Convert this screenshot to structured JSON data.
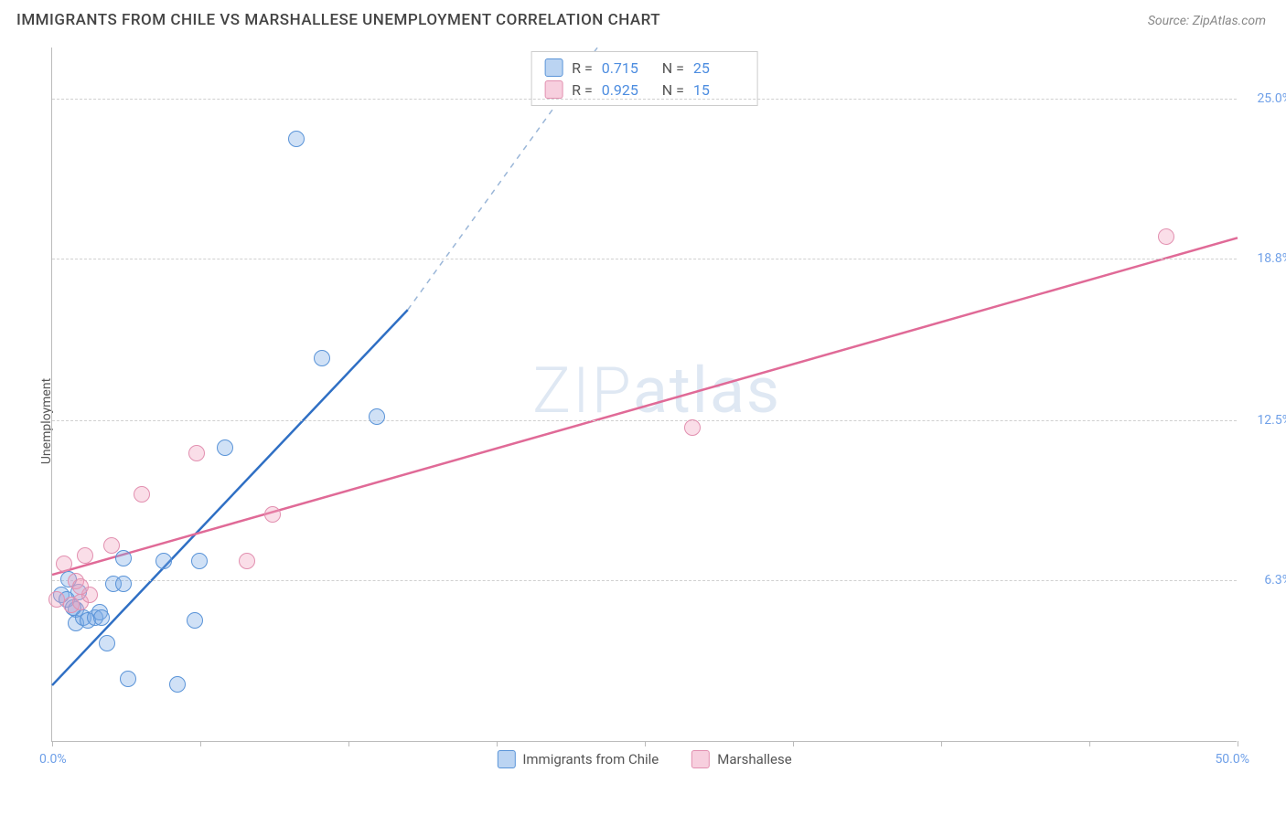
{
  "header": {
    "title": "IMMIGRANTS FROM CHILE VS MARSHALLESE UNEMPLOYMENT CORRELATION CHART",
    "source": "Source: ZipAtlas.com"
  },
  "chart": {
    "type": "scatter",
    "ylabel": "Unemployment",
    "xlim": [
      0,
      50
    ],
    "ylim": [
      0,
      27
    ],
    "x_ticks_percent": [
      0,
      6.25,
      12.5,
      18.75,
      25,
      31.25,
      37.5,
      43.75,
      50
    ],
    "x_tick_labels": {
      "left": "0.0%",
      "right": "50.0%"
    },
    "y_gridlines": [
      6.3,
      12.5,
      18.8,
      25.0
    ],
    "y_tick_labels": [
      "6.3%",
      "12.5%",
      "18.8%",
      "25.0%"
    ],
    "watermark": "ZIPatlas",
    "colors": {
      "series_blue_fill": "rgba(120,170,230,0.35)",
      "series_blue_stroke": "#5a94d8",
      "series_blue_line": "#2f6fc4",
      "series_pink_fill": "rgba(240,160,190,0.35)",
      "series_pink_stroke": "#e290b0",
      "series_pink_line": "#e06a97",
      "grid": "#d0d0d0",
      "axis": "#bbbbbb",
      "tick_text": "#6fa0e8"
    },
    "series": [
      {
        "name": "Immigrants from Chile",
        "color_key": "blue",
        "R": "0.715",
        "N": "25",
        "trend": {
          "x1": 0,
          "y1": 2.2,
          "x2": 15,
          "y2": 16.8,
          "dash_to_x": 23,
          "dash_to_y": 27
        },
        "points": [
          {
            "x": 0.4,
            "y": 5.7
          },
          {
            "x": 0.6,
            "y": 5.5
          },
          {
            "x": 0.7,
            "y": 6.3
          },
          {
            "x": 1.0,
            "y": 5.1
          },
          {
            "x": 1.0,
            "y": 4.6
          },
          {
            "x": 1.3,
            "y": 4.8
          },
          {
            "x": 1.5,
            "y": 4.7
          },
          {
            "x": 1.8,
            "y": 4.8
          },
          {
            "x": 2.0,
            "y": 5.0
          },
          {
            "x": 2.1,
            "y": 4.8
          },
          {
            "x": 2.6,
            "y": 6.1
          },
          {
            "x": 2.3,
            "y": 3.8
          },
          {
            "x": 3.0,
            "y": 7.1
          },
          {
            "x": 3.0,
            "y": 6.1
          },
          {
            "x": 3.2,
            "y": 2.4
          },
          {
            "x": 4.7,
            "y": 7.0
          },
          {
            "x": 5.3,
            "y": 2.2
          },
          {
            "x": 6.2,
            "y": 7.0
          },
          {
            "x": 6.0,
            "y": 4.7
          },
          {
            "x": 7.3,
            "y": 11.4
          },
          {
            "x": 10.3,
            "y": 23.4
          },
          {
            "x": 11.4,
            "y": 14.9
          },
          {
            "x": 13.7,
            "y": 12.6
          },
          {
            "x": 1.1,
            "y": 5.8
          },
          {
            "x": 0.9,
            "y": 5.2
          }
        ]
      },
      {
        "name": "Marshallese",
        "color_key": "pink",
        "R": "0.925",
        "N": "15",
        "trend": {
          "x1": 0,
          "y1": 6.5,
          "x2": 50,
          "y2": 19.6
        },
        "points": [
          {
            "x": 0.2,
            "y": 5.5
          },
          {
            "x": 0.5,
            "y": 6.9
          },
          {
            "x": 0.8,
            "y": 5.3
          },
          {
            "x": 1.0,
            "y": 6.2
          },
          {
            "x": 1.2,
            "y": 5.4
          },
          {
            "x": 1.4,
            "y": 7.2
          },
          {
            "x": 1.6,
            "y": 5.7
          },
          {
            "x": 1.2,
            "y": 6.0
          },
          {
            "x": 2.5,
            "y": 7.6
          },
          {
            "x": 3.8,
            "y": 9.6
          },
          {
            "x": 6.1,
            "y": 11.2
          },
          {
            "x": 8.2,
            "y": 7.0
          },
          {
            "x": 9.3,
            "y": 8.8
          },
          {
            "x": 27.0,
            "y": 12.2
          },
          {
            "x": 47.0,
            "y": 19.6
          }
        ]
      }
    ],
    "legend_bottom": [
      {
        "swatch": "blue",
        "label": "Immigrants from Chile"
      },
      {
        "swatch": "pink",
        "label": "Marshallese"
      }
    ]
  }
}
